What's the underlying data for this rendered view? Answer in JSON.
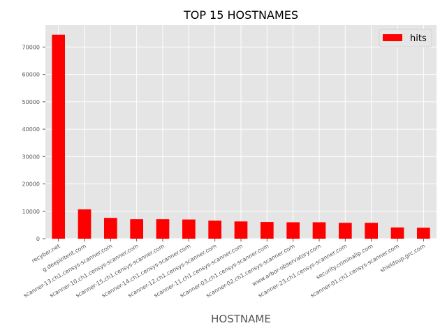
{
  "chart_data": {
    "type": "bar",
    "title": "TOP 15 HOSTNAMES",
    "xlabel": "HOSTNAME",
    "ylabel": "",
    "categories": [
      "recyber.net",
      "g.deepintent.com",
      "scanner-13.ch1.censys-scanner.com",
      "scanner-10.ch1.censys-scanner.com",
      "scanner-15.ch1.censys-scanner.com",
      "scanner-14.ch1.censys-scanner.com",
      "scanner-12.ch1.censys-scanner.com",
      "scanner-11.ch1.censys-scanner.com",
      "scanner-03.ch1.censys-scanner.com",
      "scanner-02.ch1.censys-scanner.com",
      "www.arbor-observatory.com",
      "scanner-23.ch1.censys-scanner.com",
      "security.criminalip.com",
      "scanner-01.ch1.censys-scanner.com",
      "shieldsup.grc.com"
    ],
    "series": [
      {
        "name": "hits",
        "values": [
          74500,
          10700,
          7600,
          7100,
          7100,
          7000,
          6600,
          6300,
          6100,
          6000,
          6000,
          5800,
          5800,
          4100,
          4000
        ]
      }
    ],
    "ylim": [
      0,
      78000
    ],
    "yticks": [
      0,
      10000,
      20000,
      30000,
      40000,
      50000,
      60000,
      70000
    ],
    "grid": true,
    "legend_position": "top-right",
    "colors": {
      "bar": "#ff0000",
      "plot_background": "#e5e5e5",
      "grid": "#ffffff"
    }
  }
}
